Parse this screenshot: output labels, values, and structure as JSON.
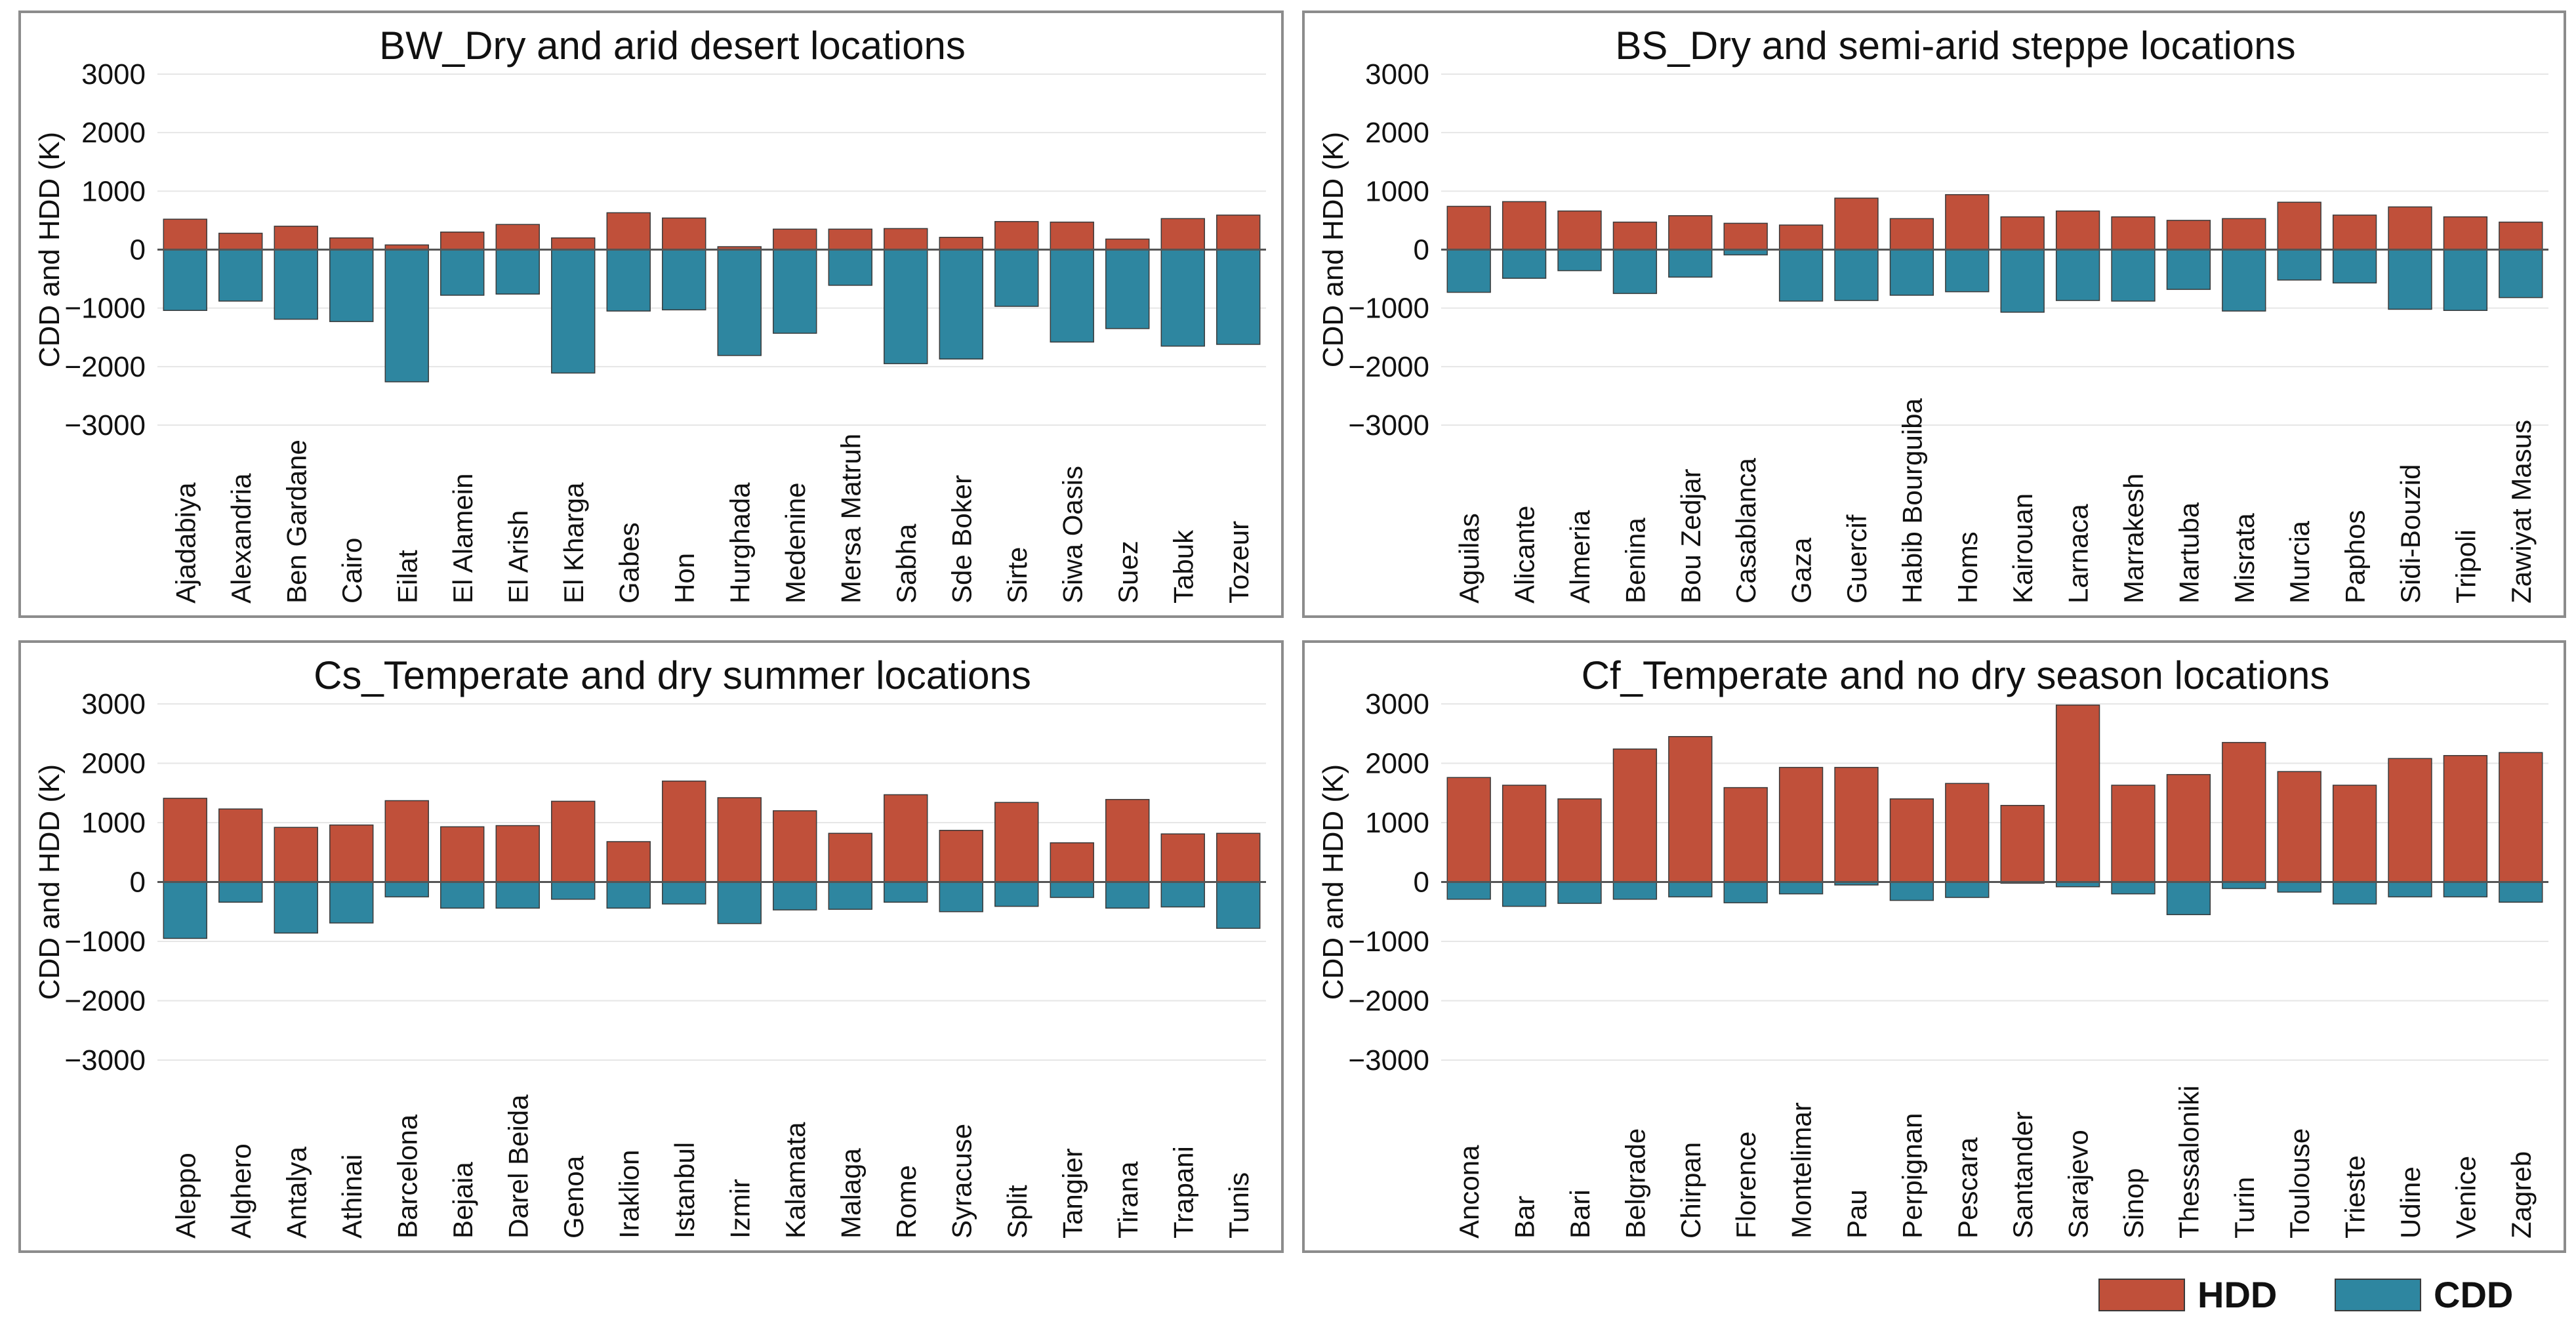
{
  "colors": {
    "hdd": "#c0503a",
    "cdd": "#2e86a0",
    "frame": "#8c8c8c",
    "grid": "#e6e6e6",
    "zero": "#555555",
    "bar_edge": "#3a3a3a"
  },
  "legend": {
    "hdd_label": "HDD",
    "cdd_label": "CDD"
  },
  "chart_data": [
    {
      "type": "bar",
      "title": "BW_Dry and arid desert locations",
      "xlabel": "",
      "ylabel": "CDD and HDD (K)",
      "ylim": [
        -3000,
        3000
      ],
      "yticks": [
        3000,
        2000,
        1000,
        0,
        -1000,
        -2000,
        -3000
      ],
      "categories": [
        "Ajadabiya",
        "Alexandria",
        "Ben Gardane",
        "Cairo",
        "Eilat",
        "El Alamein",
        "El Arish",
        "El Kharga",
        "Gabes",
        "Hon",
        "Hurghada",
        "Medenine",
        "Mersa Matruh",
        "Sabha",
        "Sde Boker",
        "Sirte",
        "Siwa Oasis",
        "Suez",
        "Tabuk",
        "Tozeur"
      ],
      "series": [
        {
          "name": "HDD",
          "values": [
            520,
            280,
            400,
            200,
            80,
            300,
            430,
            200,
            630,
            540,
            50,
            350,
            350,
            360,
            210,
            480,
            470,
            180,
            530,
            590
          ]
        },
        {
          "name": "CDD",
          "values": [
            -1040,
            -880,
            -1190,
            -1230,
            -2260,
            -780,
            -760,
            -2110,
            -1050,
            -1030,
            -1810,
            -1430,
            -610,
            -1950,
            -1870,
            -970,
            -1580,
            -1350,
            -1650,
            -1620
          ]
        }
      ]
    },
    {
      "type": "bar",
      "title": "BS_Dry and semi-arid steppe locations",
      "xlabel": "",
      "ylabel": "CDD and HDD (K)",
      "ylim": [
        -3000,
        3000
      ],
      "yticks": [
        3000,
        2000,
        1000,
        0,
        -1000,
        -2000,
        -3000
      ],
      "categories": [
        "Aguilas",
        "Alicante",
        "Almeria",
        "Benina",
        "Bou Zedjar",
        "Casablanca",
        "Gaza",
        "Guercif",
        "Habib Bourguiba",
        "Homs",
        "Kairouan",
        "Larnaca",
        "Marrakesh",
        "Martuba",
        "Misrata",
        "Murcia",
        "Paphos",
        "Sidi-Bouzid",
        "Tripoli",
        "Zawiyat Masus"
      ],
      "series": [
        {
          "name": "HDD",
          "values": [
            740,
            820,
            660,
            470,
            580,
            450,
            420,
            880,
            530,
            940,
            560,
            660,
            560,
            500,
            530,
            810,
            590,
            730,
            560,
            470
          ]
        },
        {
          "name": "CDD",
          "values": [
            -730,
            -490,
            -360,
            -750,
            -470,
            -90,
            -880,
            -870,
            -780,
            -720,
            -1070,
            -870,
            -880,
            -680,
            -1050,
            -520,
            -570,
            -1020,
            -1040,
            -820
          ]
        }
      ]
    },
    {
      "type": "bar",
      "title": "Cs_Temperate and dry summer locations",
      "xlabel": "",
      "ylabel": "CDD and HDD (K)",
      "ylim": [
        -3000,
        3000
      ],
      "yticks": [
        3000,
        2000,
        1000,
        0,
        -1000,
        -2000,
        -3000
      ],
      "categories": [
        "Aleppo",
        "Alghero",
        "Antalya",
        "Athinai",
        "Barcelona",
        "Bejaia",
        "Darel Beida",
        "Genoa",
        "Iraklion",
        "Istanbul",
        "Izmir",
        "Kalamata",
        "Malaga",
        "Rome",
        "Syracuse",
        "Split",
        "Tangier",
        "Tirana",
        "Trapani",
        "Tunis"
      ],
      "series": [
        {
          "name": "HDD",
          "values": [
            1410,
            1230,
            920,
            960,
            1370,
            930,
            950,
            1360,
            680,
            1700,
            1420,
            1200,
            820,
            1470,
            870,
            1340,
            660,
            1390,
            810,
            820
          ]
        },
        {
          "name": "CDD",
          "values": [
            -950,
            -340,
            -860,
            -690,
            -250,
            -440,
            -440,
            -290,
            -440,
            -370,
            -700,
            -470,
            -460,
            -340,
            -500,
            -410,
            -260,
            -440,
            -420,
            -780
          ]
        }
      ]
    },
    {
      "type": "bar",
      "title": "Cf_Temperate and no dry season locations",
      "xlabel": "",
      "ylabel": "CDD and HDD (K)",
      "ylim": [
        -3000,
        3000
      ],
      "yticks": [
        3000,
        2000,
        1000,
        0,
        -1000,
        -2000,
        -3000
      ],
      "categories": [
        "Ancona",
        "Bar",
        "Bari",
        "Belgrade",
        "Chirpan",
        "Florence",
        "Montelimar",
        "Pau",
        "Perpignan",
        "Pescara",
        "Santander",
        "Sarajevo",
        "Sinop",
        "Thessaloniki",
        "Turin",
        "Toulouse",
        "Trieste",
        "Udine",
        "Venice",
        "Zagreb"
      ],
      "series": [
        {
          "name": "HDD",
          "values": [
            1760,
            1630,
            1400,
            2240,
            2450,
            1590,
            1930,
            1930,
            1400,
            1660,
            1290,
            2980,
            1630,
            1810,
            2350,
            1860,
            1630,
            2080,
            2130,
            2180
          ]
        },
        {
          "name": "CDD",
          "values": [
            -290,
            -410,
            -360,
            -290,
            -250,
            -350,
            -200,
            -50,
            -310,
            -260,
            -20,
            -80,
            -200,
            -550,
            -110,
            -170,
            -370,
            -250,
            -250,
            -340
          ]
        }
      ]
    }
  ]
}
